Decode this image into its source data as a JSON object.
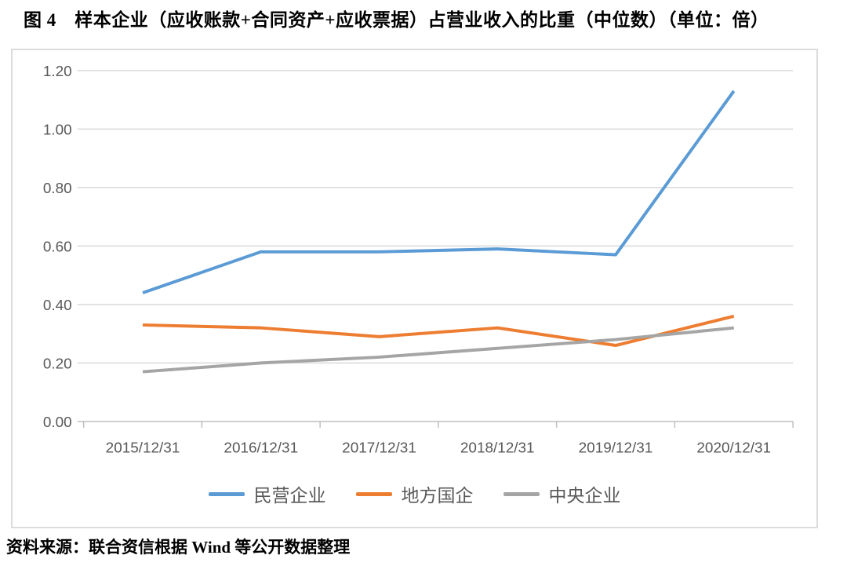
{
  "title": "图 4　样本企业（应收账款+合同资产+应收票据）占营业收入的比重（中位数）（单位：倍）",
  "source": "资料来源：联合资信根据 Wind 等公开数据整理",
  "chart_data": {
    "type": "line",
    "x": [
      "2015/12/31",
      "2016/12/31",
      "2017/12/31",
      "2018/12/31",
      "2019/12/31",
      "2020/12/31"
    ],
    "series": [
      {
        "name": "民营企业",
        "color": "#5B9BD5",
        "values": [
          0.44,
          0.58,
          0.58,
          0.59,
          0.57,
          1.13
        ]
      },
      {
        "name": "地方国企",
        "color": "#ED7D31",
        "values": [
          0.33,
          0.32,
          0.29,
          0.32,
          0.26,
          0.36
        ]
      },
      {
        "name": "中央企业",
        "color": "#A5A5A5",
        "values": [
          0.17,
          0.2,
          0.22,
          0.25,
          0.28,
          0.32
        ]
      }
    ],
    "ylim": [
      0,
      1.2
    ],
    "ytick_step": 0.2,
    "yticks": [
      "0.00",
      "0.20",
      "0.40",
      "0.60",
      "0.80",
      "1.00",
      "1.20"
    ],
    "grid": true,
    "legend_position": "bottom",
    "gridline_color": "#D9D9D9",
    "axis_color": "#BFBFBF",
    "tick_label_color": "#595959",
    "line_width": 4
  }
}
